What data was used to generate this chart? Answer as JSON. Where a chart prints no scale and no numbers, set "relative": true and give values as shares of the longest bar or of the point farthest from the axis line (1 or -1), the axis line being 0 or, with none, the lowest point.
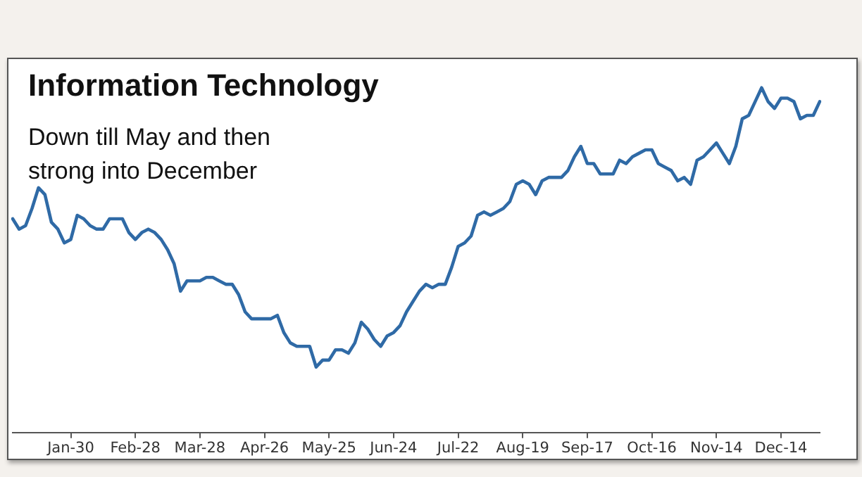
{
  "chart_data": {
    "type": "line",
    "title": "Information Technology",
    "subtitle": "Down till May and then strong into December",
    "relative": true,
    "grid": false,
    "legend": false,
    "marker": "none",
    "line_style": "solid",
    "categories": [
      null,
      null,
      null,
      null,
      null,
      null,
      null,
      null,
      null,
      "Jan-30",
      null,
      null,
      null,
      null,
      null,
      null,
      null,
      null,
      null,
      "Feb-28",
      null,
      null,
      null,
      null,
      null,
      null,
      null,
      null,
      null,
      "Mar-28",
      null,
      null,
      null,
      null,
      null,
      null,
      null,
      null,
      null,
      "Apr-26",
      null,
      null,
      null,
      null,
      null,
      null,
      null,
      null,
      null,
      "May-25",
      null,
      null,
      null,
      null,
      null,
      null,
      null,
      null,
      null,
      "Jun-24",
      null,
      null,
      null,
      null,
      null,
      null,
      null,
      null,
      null,
      "Jul-22",
      null,
      null,
      null,
      null,
      null,
      null,
      null,
      null,
      null,
      "Aug-19",
      null,
      null,
      null,
      null,
      null,
      null,
      null,
      null,
      null,
      "Sep-17",
      null,
      null,
      null,
      null,
      null,
      null,
      null,
      null,
      null,
      "Oct-16",
      null,
      null,
      null,
      null,
      null,
      null,
      null,
      null,
      null,
      "Nov-14",
      null,
      null,
      null,
      null,
      null,
      null,
      null,
      null,
      null,
      "Dec-14",
      null,
      null,
      null,
      null,
      null,
      null
    ],
    "series": [
      {
        "color": "#2f6aa6",
        "values": [
          0.62,
          0.59,
          0.6,
          0.65,
          0.71,
          0.69,
          0.61,
          0.59,
          0.55,
          0.56,
          0.63,
          0.62,
          0.6,
          0.59,
          0.59,
          0.62,
          0.62,
          0.62,
          0.58,
          0.56,
          0.58,
          0.59,
          0.58,
          0.56,
          0.53,
          0.49,
          0.41,
          0.44,
          0.44,
          0.44,
          0.45,
          0.45,
          0.44,
          0.43,
          0.43,
          0.4,
          0.35,
          0.33,
          0.33,
          0.33,
          0.33,
          0.34,
          0.29,
          0.26,
          0.25,
          0.25,
          0.25,
          0.19,
          0.21,
          0.21,
          0.24,
          0.24,
          0.23,
          0.26,
          0.32,
          0.3,
          0.27,
          0.25,
          0.28,
          0.29,
          0.31,
          0.35,
          0.38,
          0.41,
          0.43,
          0.42,
          0.43,
          0.43,
          0.48,
          0.54,
          0.55,
          0.57,
          0.63,
          0.64,
          0.63,
          0.64,
          0.65,
          0.67,
          0.72,
          0.73,
          0.72,
          0.69,
          0.73,
          0.74,
          0.74,
          0.74,
          0.76,
          0.8,
          0.83,
          0.78,
          0.78,
          0.75,
          0.75,
          0.75,
          0.79,
          0.78,
          0.8,
          0.81,
          0.82,
          0.82,
          0.78,
          0.77,
          0.76,
          0.73,
          0.74,
          0.72,
          0.79,
          0.8,
          0.82,
          0.84,
          0.81,
          0.78,
          0.83,
          0.91,
          0.92,
          0.96,
          1.0,
          0.96,
          0.94,
          0.97,
          0.97,
          0.96,
          0.91,
          0.92,
          0.92,
          0.96
        ]
      }
    ]
  }
}
